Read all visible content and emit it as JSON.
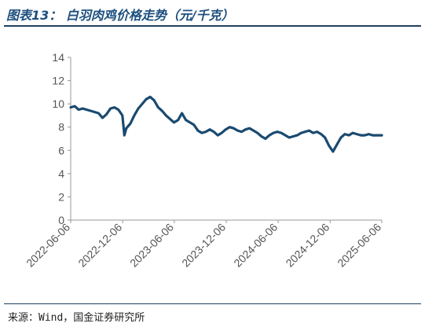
{
  "figure": {
    "title": "图表13： 白羽肉鸡价格走势（元/千克）",
    "source": "来源：Wind，国金证券研究所"
  },
  "colors": {
    "line": "#1a4a70",
    "axis": "#999999",
    "title": "#1d4f7f"
  },
  "chart_data": {
    "type": "line",
    "title": "图表13： 白羽肉鸡价格走势（元/千克）",
    "xlabel": "",
    "ylabel": "",
    "ylim": [
      0,
      14
    ],
    "yticks": [
      0,
      2,
      4,
      6,
      8,
      10,
      12,
      14
    ],
    "grid": false,
    "legend": "none",
    "xticks": [
      "2022-06-06",
      "2022-12-06",
      "2023-06-06",
      "2023-12-06",
      "2024-06-06",
      "2024-12-06",
      "2025-06-06"
    ],
    "x": [
      "2022-06-06",
      "2022-06-20",
      "2022-07-04",
      "2022-07-18",
      "2022-08-01",
      "2022-08-15",
      "2022-08-29",
      "2022-09-12",
      "2022-09-26",
      "2022-10-10",
      "2022-10-24",
      "2022-11-07",
      "2022-11-21",
      "2022-12-05",
      "2022-12-12",
      "2022-12-19",
      "2023-01-02",
      "2023-01-16",
      "2023-01-30",
      "2023-02-13",
      "2023-02-27",
      "2023-03-13",
      "2023-03-27",
      "2023-04-10",
      "2023-04-24",
      "2023-05-08",
      "2023-05-22",
      "2023-06-05",
      "2023-06-19",
      "2023-07-03",
      "2023-07-17",
      "2023-07-31",
      "2023-08-14",
      "2023-08-28",
      "2023-09-11",
      "2023-09-25",
      "2023-10-09",
      "2023-10-23",
      "2023-11-06",
      "2023-11-20",
      "2023-12-04",
      "2023-12-18",
      "2024-01-01",
      "2024-01-15",
      "2024-01-29",
      "2024-02-12",
      "2024-02-26",
      "2024-03-11",
      "2024-03-25",
      "2024-04-08",
      "2024-04-22",
      "2024-05-06",
      "2024-05-20",
      "2024-06-03",
      "2024-06-17",
      "2024-07-01",
      "2024-07-15",
      "2024-07-29",
      "2024-08-12",
      "2024-08-26",
      "2024-09-09",
      "2024-09-23",
      "2024-10-07",
      "2024-10-21",
      "2024-11-04",
      "2024-11-18",
      "2024-12-02",
      "2024-12-16",
      "2024-12-30",
      "2025-01-13",
      "2025-01-27",
      "2025-02-10",
      "2025-02-24",
      "2025-03-10",
      "2025-03-24",
      "2025-04-07",
      "2025-04-21",
      "2025-05-05",
      "2025-05-19",
      "2025-06-06"
    ],
    "series": [
      {
        "name": "",
        "values": [
          9.7,
          9.8,
          9.5,
          9.6,
          9.5,
          9.4,
          9.3,
          9.2,
          8.8,
          9.1,
          9.6,
          9.7,
          9.5,
          9.0,
          7.3,
          7.9,
          8.3,
          9.0,
          9.6,
          10.0,
          10.4,
          10.6,
          10.3,
          9.7,
          9.4,
          9.0,
          8.7,
          8.4,
          8.6,
          9.2,
          8.6,
          8.4,
          8.2,
          7.7,
          7.5,
          7.6,
          7.8,
          7.6,
          7.3,
          7.5,
          7.8,
          8.0,
          7.9,
          7.7,
          7.6,
          7.8,
          7.9,
          7.7,
          7.5,
          7.2,
          7.0,
          7.3,
          7.5,
          7.6,
          7.5,
          7.3,
          7.1,
          7.2,
          7.3,
          7.5,
          7.6,
          7.7,
          7.5,
          7.6,
          7.4,
          7.1,
          6.4,
          5.9,
          6.5,
          7.1,
          7.4,
          7.3,
          7.5,
          7.4,
          7.3,
          7.3,
          7.4,
          7.3,
          7.3,
          7.3
        ]
      }
    ]
  }
}
